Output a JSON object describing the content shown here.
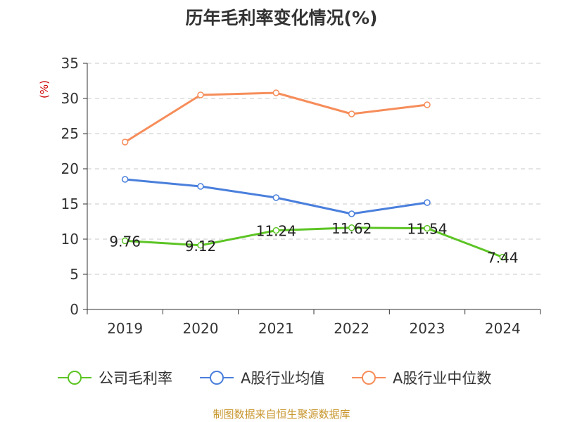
{
  "header": {
    "title": "历年毛利率变化情况(%)"
  },
  "footer": {
    "source": "制图数据来自恒生聚源数据库"
  },
  "colors": {
    "company": "#5cc424",
    "industry_avg": "#4a7fdc",
    "industry_median": "#f68d5a",
    "grid": "#c8c8c8",
    "axis": "#333333",
    "unit_label": "#cc0000"
  },
  "chart_data": {
    "type": "line",
    "title": "历年毛利率变化情况(%)",
    "ylabel": "(%)",
    "xlabel": "",
    "categories": [
      "2019",
      "2020",
      "2021",
      "2022",
      "2023",
      "2024"
    ],
    "ylim": [
      0,
      35
    ],
    "yticks": [
      0,
      5,
      10,
      15,
      20,
      25,
      30,
      35
    ],
    "grid": true,
    "legend_position": "bottom",
    "series": [
      {
        "name": "公司毛利率",
        "color": "#5cc424",
        "values": [
          9.76,
          9.12,
          11.24,
          11.62,
          11.54,
          7.44
        ],
        "labels": [
          "9.76",
          "9.12",
          "11.24",
          "11.62",
          "11.54",
          "7.44"
        ]
      },
      {
        "name": "A股行业均值",
        "color": "#4a7fdc",
        "values": [
          18.5,
          17.5,
          15.9,
          13.6,
          15.2,
          null
        ]
      },
      {
        "name": "A股行业中位数",
        "color": "#f68d5a",
        "values": [
          23.8,
          30.5,
          30.8,
          27.8,
          29.1,
          null
        ]
      }
    ]
  }
}
